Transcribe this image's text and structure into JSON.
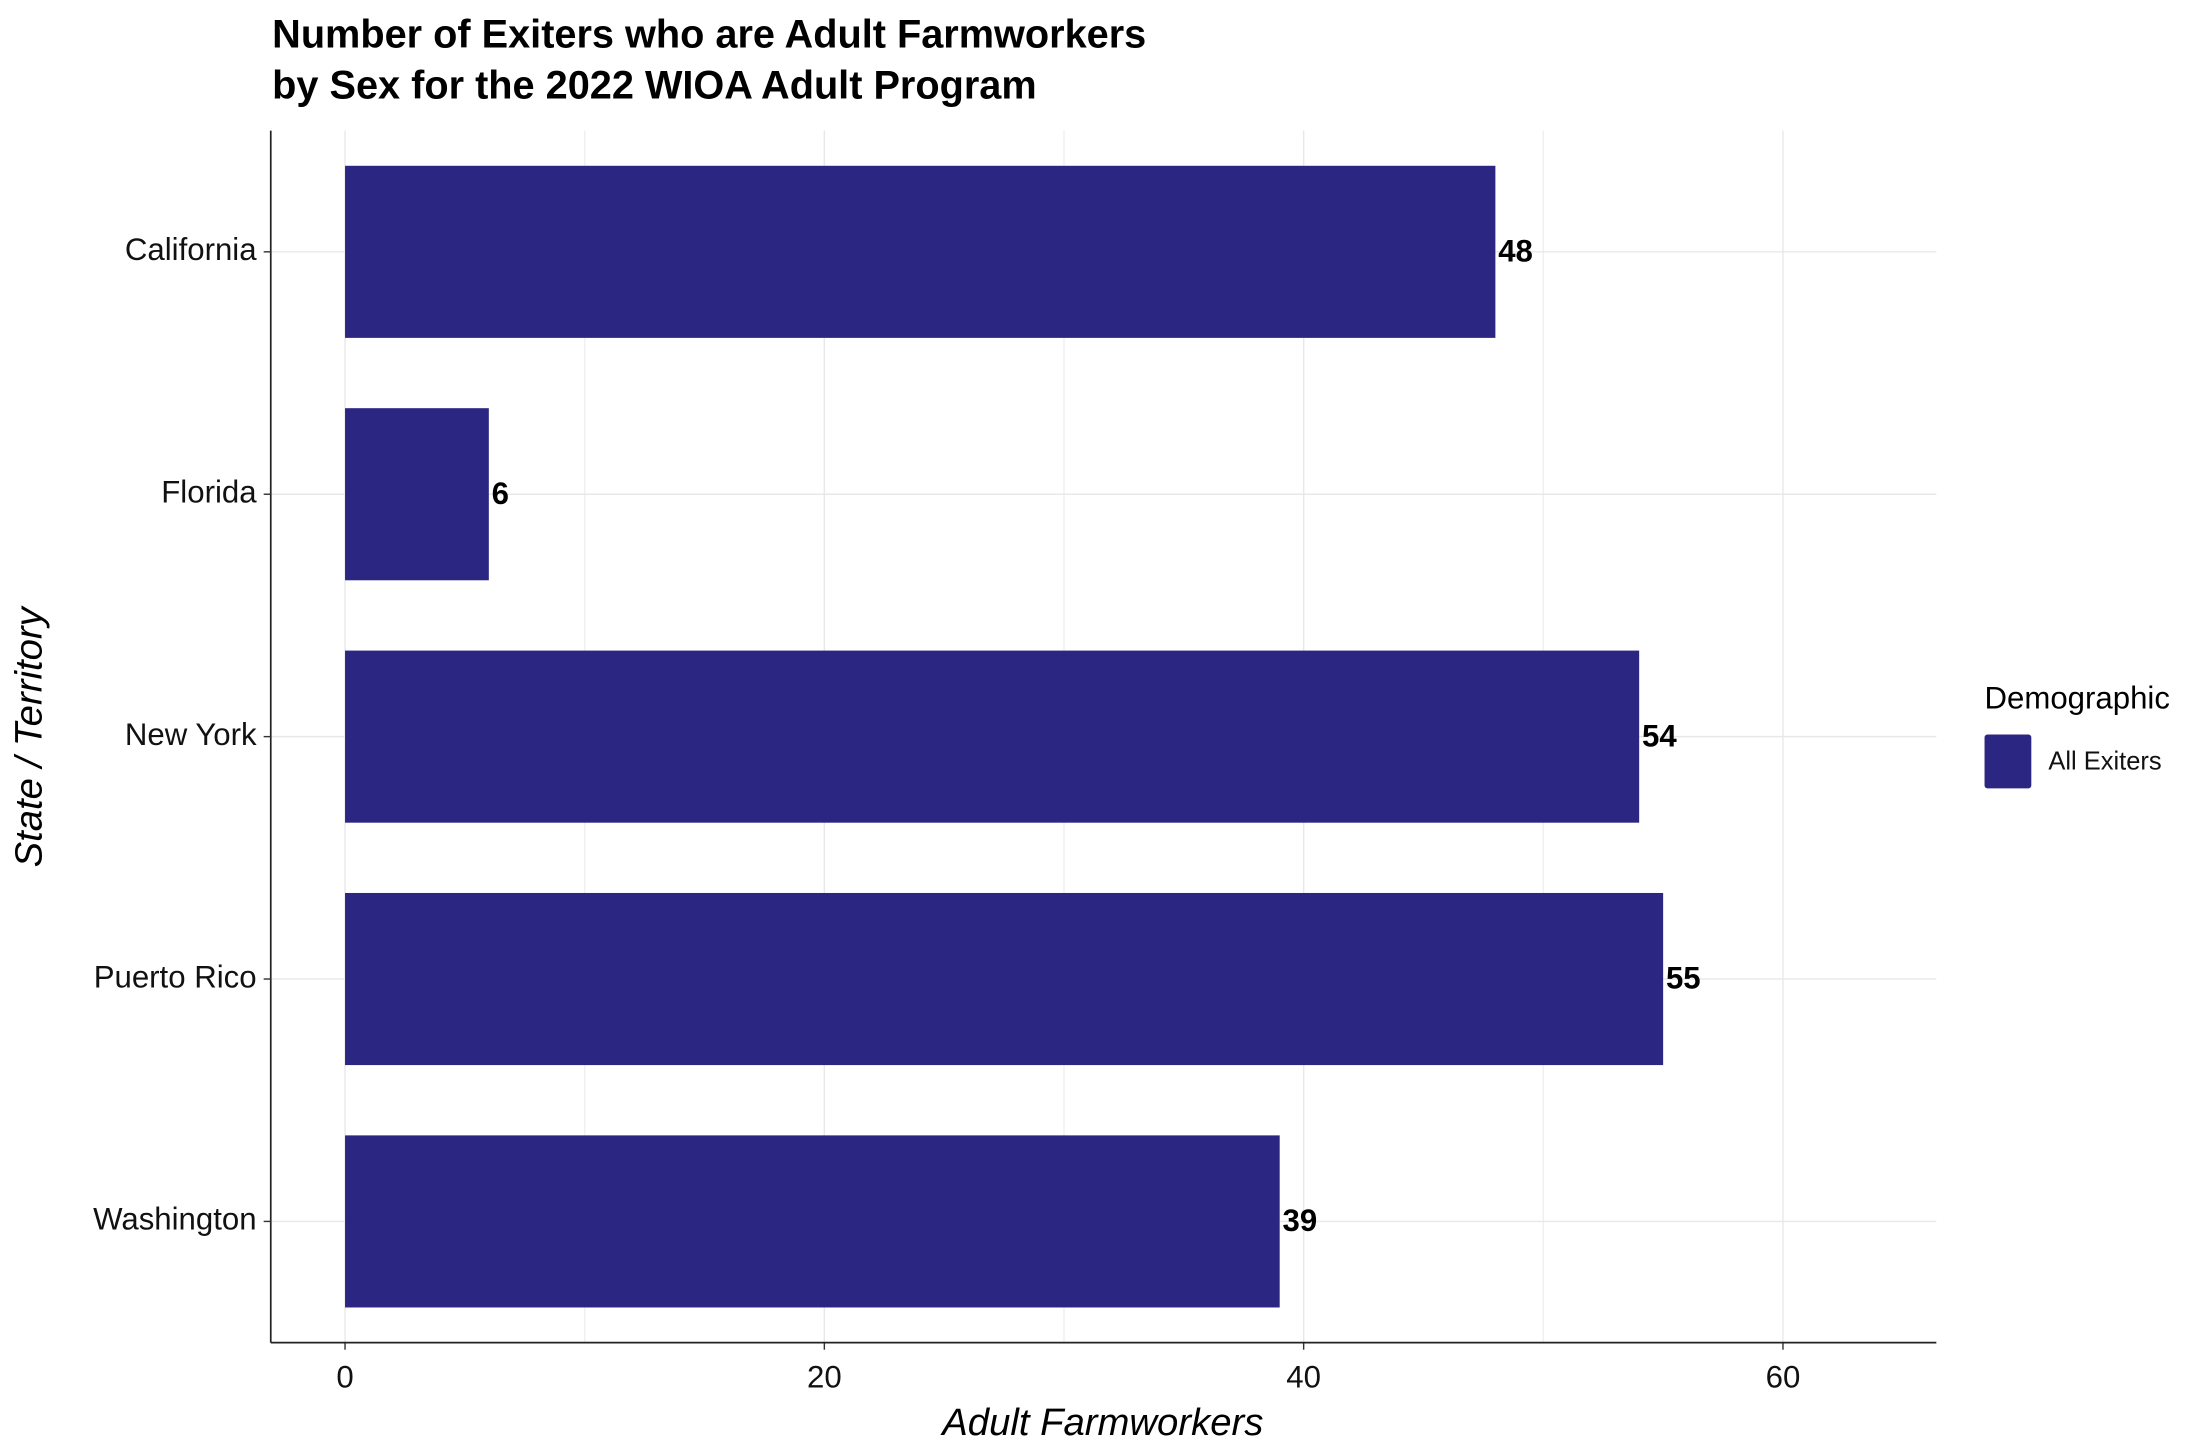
{
  "chart_data": {
    "type": "bar",
    "orientation": "horizontal",
    "title_lines": [
      "Number of  Exiters who are Adult Farmworkers",
      "by Sex for the 2022 WIOA Adult Program"
    ],
    "x_label": "Adult Farmworkers",
    "y_label": "State / Territory",
    "categories": [
      "California",
      "Florida",
      "New York",
      "Puerto Rico",
      "Washington"
    ],
    "series": [
      {
        "name": "All Exiters",
        "color": "#2c2683",
        "values": [
          48,
          6,
          54,
          55,
          39
        ]
      }
    ],
    "legend_title": "Demographic",
    "legend": "right",
    "xlim": [
      -3.1,
      66.4
    ],
    "xticks": [
      0,
      20,
      40,
      60
    ],
    "x_minor_gridlines": [
      10,
      30,
      50
    ],
    "grid": true
  }
}
